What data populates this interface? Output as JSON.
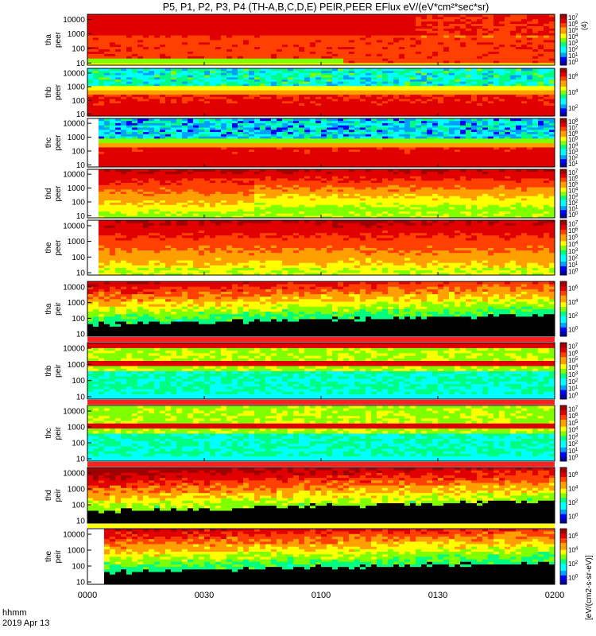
{
  "chart_data": {
    "type": "heatmap",
    "title": "P5, P1, P2, P3, P4 (TH-A,B,C,D,E) PEIR,PEER EFlux eV/(eV*cm²*sec*sr)",
    "x_ticks": [
      "0000",
      "0030",
      "0100",
      "0130",
      "0200"
    ],
    "x_caption": "hhmm",
    "date": "2019 Apr 13",
    "y_ticks": [
      "10000",
      "1000",
      "100",
      "10"
    ],
    "y_scale": "log",
    "colorbar_scale": "log",
    "colorbar_unit": "[eV/(cm2-s-sr-eV)]",
    "panels": [
      {
        "probe": "tha",
        "instrument": "peer",
        "colorbar_exponents": [
          0,
          1,
          2,
          3,
          4,
          5,
          6,
          7
        ],
        "colorbar_top_label": "(4)"
      },
      {
        "probe": "thb",
        "instrument": "peer",
        "colorbar_exponents": [
          2,
          4,
          6
        ]
      },
      {
        "probe": "thc",
        "instrument": "peer",
        "colorbar_exponents": [
          1,
          2,
          3,
          4,
          5,
          6,
          7,
          8
        ]
      },
      {
        "probe": "thd",
        "instrument": "peer",
        "colorbar_exponents": [
          0,
          1,
          2,
          3,
          4,
          5,
          6,
          7
        ]
      },
      {
        "probe": "the",
        "instrument": "peer",
        "colorbar_exponents": [
          0,
          1,
          2,
          3,
          4,
          5,
          6,
          7
        ]
      },
      {
        "probe": "tha",
        "instrument": "peir",
        "colorbar_exponents": [
          0,
          2,
          4,
          6
        ]
      },
      {
        "probe": "thb",
        "instrument": "peir",
        "colorbar_exponents": [
          0,
          1,
          2,
          3,
          4,
          5,
          6,
          7
        ]
      },
      {
        "probe": "thc",
        "instrument": "peir",
        "colorbar_exponents": [
          0,
          1,
          2,
          3,
          4,
          5,
          6,
          7
        ]
      },
      {
        "probe": "thd",
        "instrument": "peir",
        "colorbar_exponents": [
          0,
          2,
          4,
          6
        ]
      },
      {
        "probe": "the",
        "instrument": "peir",
        "colorbar_exponents": [
          0,
          2,
          4,
          6
        ]
      }
    ]
  },
  "colors": {
    "scale": [
      "#0000a0",
      "#0000ff",
      "#00a0ff",
      "#00ffff",
      "#00ff80",
      "#80ff00",
      "#ffff00",
      "#ffa000",
      "#ff4000",
      "#e00000",
      "#a00000"
    ],
    "low_count": "#000000"
  }
}
